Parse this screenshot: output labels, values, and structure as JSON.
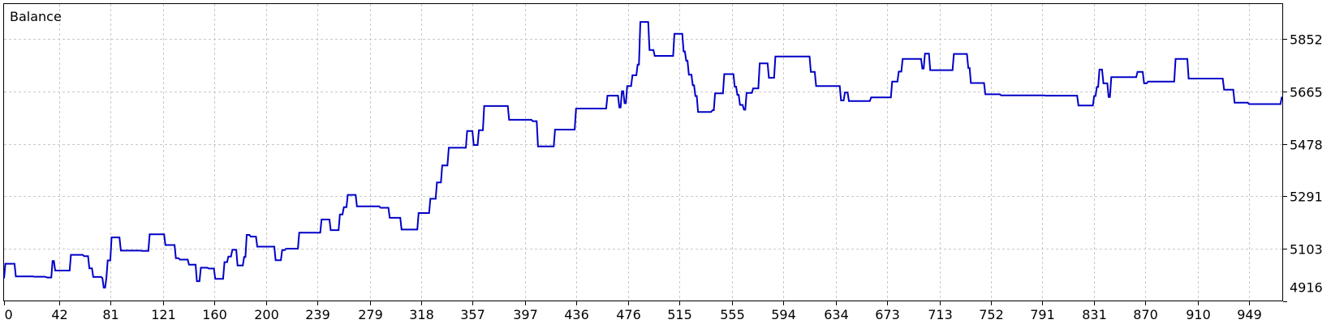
{
  "chart_data": {
    "type": "line",
    "title": "Balance",
    "xlabel": "",
    "ylabel": "",
    "grid": true,
    "y_axis_side": "right",
    "xlim": [
      0,
      975
    ],
    "ylim": [
      4916,
      5977
    ],
    "x_ticks": [
      "0",
      "42",
      "81",
      "121",
      "160",
      "200",
      "239",
      "279",
      "318",
      "357",
      "397",
      "436",
      "476",
      "515",
      "555",
      "594",
      "634",
      "673",
      "713",
      "752",
      "791",
      "831",
      "870",
      "910",
      "949"
    ],
    "y_ticks": [
      "4916",
      "5103",
      "5291",
      "5478",
      "5665",
      "5852"
    ],
    "colors": {
      "line": "#0000c8",
      "grid": "#c8c8c8",
      "frame": "#000000",
      "background": "#ffffff"
    },
    "series": [
      {
        "values": [
          [
            0,
            4998
          ],
          [
            1,
            5050
          ],
          [
            8,
            5050
          ],
          [
            9,
            5005
          ],
          [
            12,
            5005
          ],
          [
            22,
            5005
          ],
          [
            23,
            5004
          ],
          [
            31,
            5004
          ],
          [
            33,
            5001
          ],
          [
            36,
            5001
          ],
          [
            37,
            5060
          ],
          [
            38,
            5060
          ],
          [
            39,
            5026
          ],
          [
            48,
            5026
          ],
          [
            49,
            5026
          ],
          [
            50,
            5026
          ],
          [
            51,
            5082
          ],
          [
            60,
            5082
          ],
          [
            61,
            5077
          ],
          [
            64,
            5077
          ],
          [
            65,
            5034
          ],
          [
            66,
            5034
          ],
          [
            67,
            5034
          ],
          [
            68,
            5003
          ],
          [
            74,
            5003
          ],
          [
            75,
            4999
          ],
          [
            76,
            4965
          ],
          [
            77,
            4965
          ],
          [
            78,
            4999
          ],
          [
            79,
            5062
          ],
          [
            81,
            5062
          ],
          [
            82,
            5144
          ],
          [
            88,
            5144
          ],
          [
            89,
            5097
          ],
          [
            104,
            5097
          ],
          [
            105,
            5096
          ],
          [
            110,
            5096
          ],
          [
            111,
            5155
          ],
          [
            122,
            5155
          ],
          [
            123,
            5117
          ],
          [
            130,
            5117
          ],
          [
            131,
            5070
          ],
          [
            133,
            5070
          ],
          [
            134,
            5065
          ],
          [
            140,
            5065
          ],
          [
            141,
            5047
          ],
          [
            146,
            5047
          ],
          [
            147,
            4988
          ],
          [
            149,
            4988
          ],
          [
            150,
            5036
          ],
          [
            155,
            5036
          ],
          [
            156,
            5033
          ],
          [
            160,
            5033
          ],
          [
            161,
            4996
          ],
          [
            167,
            4996
          ],
          [
            168,
            5056
          ],
          [
            170,
            5056
          ],
          [
            171,
            5076
          ],
          [
            173,
            5076
          ],
          [
            174,
            5100
          ],
          [
            177,
            5100
          ],
          [
            178,
            5044
          ],
          [
            182,
            5044
          ],
          [
            183,
            5074
          ],
          [
            184,
            5074
          ],
          [
            185,
            5153
          ],
          [
            187,
            5153
          ],
          [
            188,
            5147
          ],
          [
            192,
            5147
          ],
          [
            193,
            5111
          ],
          [
            206,
            5111
          ],
          [
            207,
            5063
          ],
          [
            211,
            5063
          ],
          [
            212,
            5099
          ],
          [
            214,
            5099
          ],
          [
            215,
            5104
          ],
          [
            224,
            5104
          ],
          [
            225,
            5161
          ],
          [
            241,
            5161
          ],
          [
            242,
            5208
          ],
          [
            248,
            5208
          ],
          [
            249,
            5170
          ],
          [
            255,
            5170
          ],
          [
            256,
            5226
          ],
          [
            258,
            5226
          ],
          [
            259,
            5252
          ],
          [
            261,
            5252
          ],
          [
            262,
            5296
          ],
          [
            268,
            5296
          ],
          [
            269,
            5255
          ],
          [
            286,
            5255
          ],
          [
            287,
            5250
          ],
          [
            293,
            5250
          ],
          [
            294,
            5214
          ],
          [
            302,
            5214
          ],
          [
            303,
            5172
          ],
          [
            315,
            5172
          ],
          [
            316,
            5231
          ],
          [
            324,
            5231
          ],
          [
            325,
            5282
          ],
          [
            329,
            5282
          ],
          [
            330,
            5340
          ],
          [
            333,
            5340
          ],
          [
            334,
            5401
          ],
          [
            338,
            5401
          ],
          [
            339,
            5464
          ],
          [
            352,
            5464
          ],
          [
            353,
            5524
          ],
          [
            357,
            5524
          ],
          [
            358,
            5474
          ],
          [
            361,
            5474
          ],
          [
            362,
            5527
          ],
          [
            365,
            5527
          ],
          [
            366,
            5613
          ],
          [
            384,
            5613
          ],
          [
            385,
            5564
          ],
          [
            402,
            5564
          ],
          [
            403,
            5559
          ],
          [
            406,
            5559
          ],
          [
            407,
            5469
          ],
          [
            419,
            5469
          ],
          [
            420,
            5529
          ],
          [
            435,
            5529
          ],
          [
            436,
            5604
          ],
          [
            459,
            5604
          ],
          [
            460,
            5650
          ],
          [
            468,
            5650
          ],
          [
            469,
            5608
          ],
          [
            470,
            5608
          ],
          [
            471,
            5666
          ],
          [
            472,
            5666
          ],
          [
            473,
            5623
          ],
          [
            474,
            5623
          ],
          [
            475,
            5684
          ],
          [
            478,
            5684
          ],
          [
            479,
            5723
          ],
          [
            482,
            5723
          ],
          [
            483,
            5761
          ],
          [
            484,
            5761
          ],
          [
            485,
            5913
          ],
          [
            491,
            5913
          ],
          [
            492,
            5813
          ],
          [
            495,
            5813
          ],
          [
            496,
            5792
          ],
          [
            498,
            5792
          ],
          [
            499,
            5792
          ],
          [
            500,
            5792
          ],
          [
            501,
            5792
          ],
          [
            502,
            5792
          ],
          [
            503,
            5792
          ],
          [
            504,
            5792
          ],
          [
            505,
            5792
          ],
          [
            506,
            5792
          ],
          [
            507,
            5792
          ],
          [
            508,
            5792
          ],
          [
            509,
            5792
          ],
          [
            510,
            5792
          ],
          [
            511,
            5871
          ],
          [
            517,
            5871
          ],
          [
            518,
            5808
          ],
          [
            519,
            5808
          ],
          [
            520,
            5775
          ],
          [
            521,
            5775
          ],
          [
            522,
            5725
          ],
          [
            524,
            5725
          ],
          [
            525,
            5687
          ],
          [
            526,
            5687
          ],
          [
            527,
            5649
          ],
          [
            528,
            5649
          ],
          [
            529,
            5592
          ],
          [
            539,
            5592
          ],
          [
            540,
            5598
          ],
          [
            541,
            5598
          ],
          [
            542,
            5658
          ],
          [
            548,
            5658
          ],
          [
            549,
            5727
          ],
          [
            556,
            5727
          ],
          [
            557,
            5682
          ],
          [
            558,
            5682
          ],
          [
            559,
            5653
          ],
          [
            560,
            5653
          ],
          [
            561,
            5617
          ],
          [
            563,
            5617
          ],
          [
            564,
            5600
          ],
          [
            565,
            5600
          ],
          [
            566,
            5660
          ],
          [
            570,
            5660
          ],
          [
            571,
            5676
          ],
          [
            575,
            5676
          ],
          [
            576,
            5765
          ],
          [
            582,
            5765
          ],
          [
            583,
            5714
          ],
          [
            587,
            5714
          ],
          [
            588,
            5790
          ],
          [
            614,
            5790
          ],
          [
            615,
            5735
          ],
          [
            618,
            5735
          ],
          [
            619,
            5684
          ],
          [
            637,
            5684
          ],
          [
            638,
            5633
          ],
          [
            640,
            5633
          ],
          [
            641,
            5661
          ],
          [
            643,
            5661
          ],
          [
            644,
            5631
          ],
          [
            660,
            5631
          ],
          [
            661,
            5644
          ],
          [
            676,
            5644
          ],
          [
            677,
            5700
          ],
          [
            681,
            5700
          ],
          [
            682,
            5736
          ],
          [
            684,
            5736
          ],
          [
            685,
            5781
          ],
          [
            699,
            5781
          ],
          [
            700,
            5747
          ],
          [
            701,
            5747
          ],
          [
            702,
            5800
          ],
          [
            705,
            5800
          ],
          [
            706,
            5741
          ],
          [
            723,
            5741
          ],
          [
            724,
            5799
          ],
          [
            734,
            5799
          ],
          [
            735,
            5749
          ],
          [
            736,
            5749
          ],
          [
            737,
            5695
          ],
          [
            747,
            5695
          ],
          [
            748,
            5655
          ],
          [
            759,
            5655
          ],
          [
            760,
            5651
          ],
          [
            790,
            5651
          ],
          [
            791,
            5651
          ],
          [
            793,
            5651
          ],
          [
            794,
            5650
          ],
          [
            814,
            5650
          ],
          [
            815,
            5650
          ],
          [
            816,
            5650
          ],
          [
            817,
            5650
          ],
          [
            818,
            5650
          ],
          [
            819,
            5615
          ],
          [
            830,
            5615
          ],
          [
            831,
            5649
          ],
          [
            832,
            5649
          ],
          [
            833,
            5681
          ],
          [
            834,
            5681
          ],
          [
            835,
            5743
          ],
          [
            837,
            5743
          ],
          [
            838,
            5694
          ],
          [
            841,
            5694
          ],
          [
            842,
            5645
          ],
          [
            843,
            5645
          ],
          [
            844,
            5716
          ],
          [
            863,
            5716
          ],
          [
            864,
            5735
          ],
          [
            868,
            5735
          ],
          [
            869,
            5694
          ],
          [
            871,
            5694
          ],
          [
            872,
            5700
          ],
          [
            892,
            5700
          ],
          [
            893,
            5781
          ],
          [
            902,
            5781
          ],
          [
            903,
            5711
          ],
          [
            929,
            5711
          ],
          [
            930,
            5671
          ],
          [
            937,
            5671
          ],
          [
            938,
            5625
          ],
          [
            948,
            5625
          ],
          [
            949,
            5620
          ],
          [
            973,
            5620
          ],
          [
            974,
            5646
          ]
        ]
      }
    ]
  }
}
